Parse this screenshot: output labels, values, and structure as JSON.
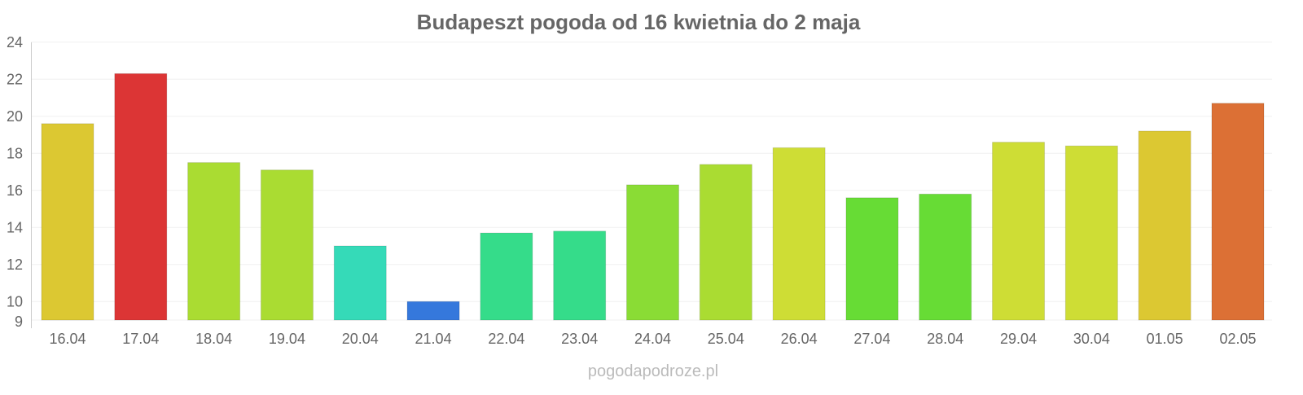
{
  "chart_data": {
    "type": "bar",
    "title": "Budapeszt pogoda od 16 kwietnia do 2 maja",
    "xlabel": "",
    "ylabel": "",
    "ylim": [
      9,
      24
    ],
    "yticks": [
      9,
      10,
      12,
      14,
      16,
      18,
      20,
      22,
      24
    ],
    "grid": true,
    "categories": [
      "16.04",
      "17.04",
      "18.04",
      "19.04",
      "20.04",
      "21.04",
      "22.04",
      "23.04",
      "24.04",
      "25.04",
      "26.04",
      "27.04",
      "28.04",
      "29.04",
      "30.04",
      "01.05",
      "02.05"
    ],
    "values": [
      19.6,
      22.3,
      17.5,
      17.1,
      13.0,
      10.0,
      13.7,
      13.8,
      16.3,
      17.4,
      18.3,
      15.6,
      15.8,
      18.6,
      18.4,
      19.2,
      20.7
    ],
    "colors": [
      "#dcc832",
      "#dc3535",
      "#aadc32",
      "#aadc32",
      "#35dab8",
      "#3578dc",
      "#35dc8a",
      "#35dc8a",
      "#8adc35",
      "#aadc32",
      "#cedd35",
      "#67dc35",
      "#67dc35",
      "#cedd35",
      "#cedd35",
      "#dcc832",
      "#dc7035"
    ]
  },
  "watermark": "pogodapodroze.pl"
}
